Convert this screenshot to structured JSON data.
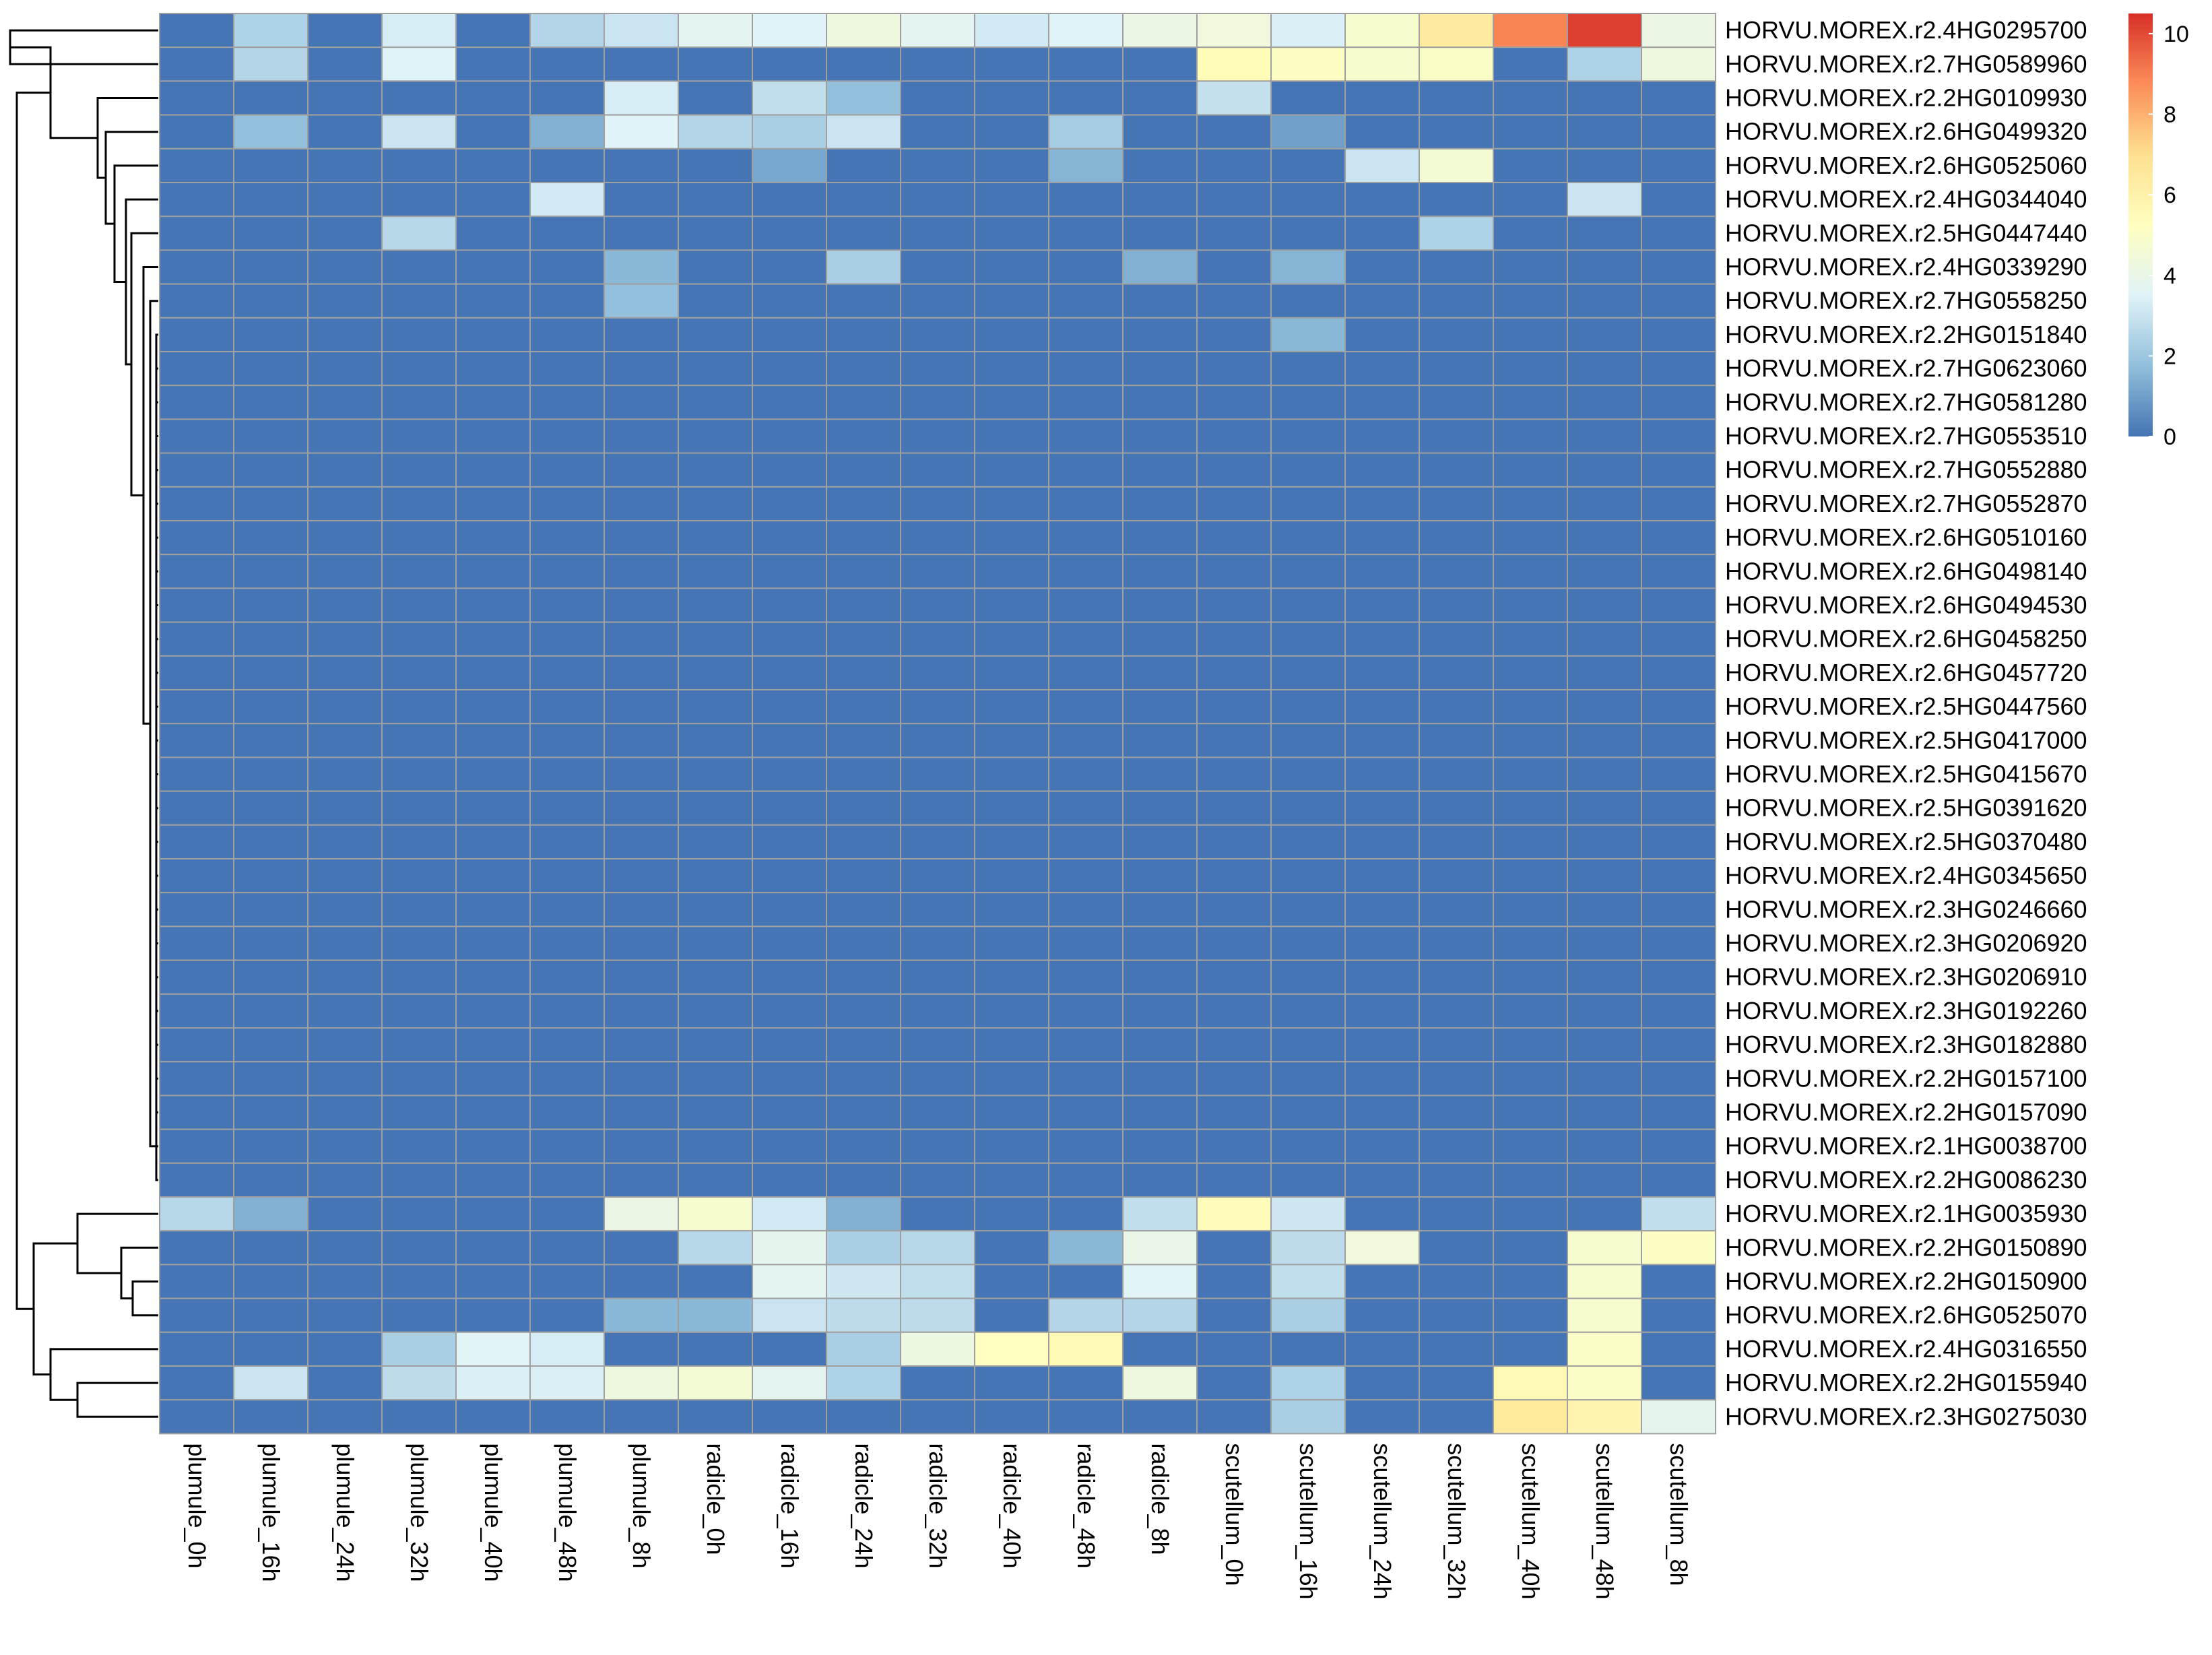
{
  "chart_data": {
    "type": "heatmap",
    "title": "",
    "xlabel": "",
    "ylabel": "",
    "columns": [
      "plumule_0h",
      "plumule_16h",
      "plumule_24h",
      "plumule_32h",
      "plumule_40h",
      "plumule_48h",
      "plumule_8h",
      "radicle_0h",
      "radicle_16h",
      "radicle_24h",
      "radicle_32h",
      "radicle_40h",
      "radicle_48h",
      "radicle_8h",
      "scutellum_0h",
      "scutellum_16h",
      "scutellum_24h",
      "scutellum_32h",
      "scutellum_40h",
      "scutellum_48h",
      "scutellum_8h"
    ],
    "rows": [
      {
        "name": "HORVU.MOREX.r2.4HG0295700",
        "values": [
          0,
          2.4,
          0,
          3.3,
          0,
          2.5,
          3.0,
          3.7,
          3.5,
          4.3,
          3.7,
          3.2,
          3.5,
          4.1,
          4.4,
          3.4,
          4.8,
          6.4,
          8.9,
          10.2,
          4.1
        ]
      },
      {
        "name": "HORVU.MOREX.r2.7HG0589960",
        "values": [
          0,
          2.5,
          0,
          3.5,
          0,
          0,
          0,
          0,
          0,
          0,
          0,
          0,
          0,
          0,
          5.5,
          5.1,
          4.8,
          5.0,
          0,
          2.4,
          4.3
        ]
      },
      {
        "name": "HORVU.MOREX.r2.2HG0109930",
        "values": [
          0,
          0,
          0,
          0,
          0,
          0,
          3.3,
          0,
          2.8,
          1.8,
          0,
          0,
          0,
          0,
          2.9,
          0,
          0,
          0,
          0,
          0,
          0
        ]
      },
      {
        "name": "HORVU.MOREX.r2.6HG0499320",
        "values": [
          0,
          1.8,
          0,
          3.0,
          0,
          1.4,
          3.5,
          2.5,
          2.3,
          3.0,
          0,
          0,
          2.2,
          0,
          0,
          1.0,
          0,
          0,
          0,
          0,
          0
        ]
      },
      {
        "name": "HORVU.MOREX.r2.6HG0525060",
        "values": [
          0,
          0,
          0,
          0,
          0,
          0,
          0,
          0,
          1.2,
          0,
          0,
          0,
          1.5,
          0,
          0,
          0,
          3.0,
          4.6,
          0,
          0,
          0
        ]
      },
      {
        "name": "HORVU.MOREX.r2.4HG0344040",
        "values": [
          0,
          0,
          0,
          0,
          0,
          3.2,
          0,
          0,
          0,
          0,
          0,
          0,
          0,
          0,
          0,
          0,
          0,
          0,
          0,
          3.0,
          0
        ]
      },
      {
        "name": "HORVU.MOREX.r2.5HG0447440",
        "values": [
          0,
          0,
          0,
          2.6,
          0,
          0,
          0,
          0,
          0,
          0,
          0,
          0,
          0,
          0,
          0,
          0,
          0,
          2.4,
          0,
          0,
          0
        ]
      },
      {
        "name": "HORVU.MOREX.r2.4HG0339290",
        "values": [
          0,
          0,
          0,
          0,
          0,
          0,
          1.6,
          0,
          0,
          2.3,
          0,
          0,
          0,
          1.4,
          0,
          1.5,
          0,
          0,
          0,
          0,
          0
        ]
      },
      {
        "name": "HORVU.MOREX.r2.7HG0558250",
        "values": [
          0,
          0,
          0,
          0,
          0,
          0,
          1.8,
          0,
          0,
          0,
          0,
          0,
          0,
          0,
          0,
          0,
          0,
          0,
          0,
          0,
          0
        ]
      },
      {
        "name": "HORVU.MOREX.r2.2HG0151840",
        "values": [
          0,
          0,
          0,
          0,
          0,
          0,
          0,
          0,
          0,
          0,
          0,
          0,
          0,
          0,
          0,
          1.6,
          0,
          0,
          0,
          0,
          0
        ]
      },
      {
        "name": "HORVU.MOREX.r2.7HG0623060",
        "values": [
          0,
          0,
          0,
          0,
          0,
          0,
          0,
          0,
          0,
          0,
          0,
          0,
          0,
          0,
          0,
          0,
          0,
          0,
          0,
          0,
          0
        ]
      },
      {
        "name": "HORVU.MOREX.r2.7HG0581280",
        "values": [
          0,
          0,
          0,
          0,
          0,
          0,
          0,
          0,
          0,
          0,
          0,
          0,
          0,
          0,
          0,
          0,
          0,
          0,
          0,
          0,
          0
        ]
      },
      {
        "name": "HORVU.MOREX.r2.7HG0553510",
        "values": [
          0,
          0,
          0,
          0,
          0,
          0,
          0,
          0,
          0,
          0,
          0,
          0,
          0,
          0,
          0,
          0,
          0,
          0,
          0,
          0,
          0
        ]
      },
      {
        "name": "HORVU.MOREX.r2.7HG0552880",
        "values": [
          0,
          0,
          0,
          0,
          0,
          0,
          0,
          0,
          0,
          0,
          0,
          0,
          0,
          0,
          0,
          0,
          0,
          0,
          0,
          0,
          0
        ]
      },
      {
        "name": "HORVU.MOREX.r2.7HG0552870",
        "values": [
          0,
          0,
          0,
          0,
          0,
          0,
          0,
          0,
          0,
          0,
          0,
          0,
          0,
          0,
          0,
          0,
          0,
          0,
          0,
          0,
          0
        ]
      },
      {
        "name": "HORVU.MOREX.r2.6HG0510160",
        "values": [
          0,
          0,
          0,
          0,
          0,
          0,
          0,
          0,
          0,
          0,
          0,
          0,
          0,
          0,
          0,
          0,
          0,
          0,
          0,
          0,
          0
        ]
      },
      {
        "name": "HORVU.MOREX.r2.6HG0498140",
        "values": [
          0,
          0,
          0,
          0,
          0,
          0,
          0,
          0,
          0,
          0,
          0,
          0,
          0,
          0,
          0,
          0,
          0,
          0,
          0,
          0,
          0
        ]
      },
      {
        "name": "HORVU.MOREX.r2.6HG0494530",
        "values": [
          0,
          0,
          0,
          0,
          0,
          0,
          0,
          0,
          0,
          0,
          0,
          0,
          0,
          0,
          0,
          0,
          0,
          0,
          0,
          0,
          0
        ]
      },
      {
        "name": "HORVU.MOREX.r2.6HG0458250",
        "values": [
          0,
          0,
          0,
          0,
          0,
          0,
          0,
          0,
          0,
          0,
          0,
          0,
          0,
          0,
          0,
          0,
          0,
          0,
          0,
          0,
          0
        ]
      },
      {
        "name": "HORVU.MOREX.r2.6HG0457720",
        "values": [
          0,
          0,
          0,
          0,
          0,
          0,
          0,
          0,
          0,
          0,
          0,
          0,
          0,
          0,
          0,
          0,
          0,
          0,
          0,
          0,
          0
        ]
      },
      {
        "name": "HORVU.MOREX.r2.5HG0447560",
        "values": [
          0,
          0,
          0,
          0,
          0,
          0,
          0,
          0,
          0,
          0,
          0,
          0,
          0,
          0,
          0,
          0,
          0,
          0,
          0,
          0,
          0
        ]
      },
      {
        "name": "HORVU.MOREX.r2.5HG0417000",
        "values": [
          0,
          0,
          0,
          0,
          0,
          0,
          0,
          0,
          0,
          0,
          0,
          0,
          0,
          0,
          0,
          0,
          0,
          0,
          0,
          0,
          0
        ]
      },
      {
        "name": "HORVU.MOREX.r2.5HG0415670",
        "values": [
          0,
          0,
          0,
          0,
          0,
          0,
          0,
          0,
          0,
          0,
          0,
          0,
          0,
          0,
          0,
          0,
          0,
          0,
          0,
          0,
          0
        ]
      },
      {
        "name": "HORVU.MOREX.r2.5HG0391620",
        "values": [
          0,
          0,
          0,
          0,
          0,
          0,
          0,
          0,
          0,
          0,
          0,
          0,
          0,
          0,
          0,
          0,
          0,
          0,
          0,
          0,
          0
        ]
      },
      {
        "name": "HORVU.MOREX.r2.5HG0370480",
        "values": [
          0,
          0,
          0,
          0,
          0,
          0,
          0,
          0,
          0,
          0,
          0,
          0,
          0,
          0,
          0,
          0,
          0,
          0,
          0,
          0,
          0
        ]
      },
      {
        "name": "HORVU.MOREX.r2.4HG0345650",
        "values": [
          0,
          0,
          0,
          0,
          0,
          0,
          0,
          0,
          0,
          0,
          0,
          0,
          0,
          0,
          0,
          0,
          0,
          0,
          0,
          0,
          0
        ]
      },
      {
        "name": "HORVU.MOREX.r2.3HG0246660",
        "values": [
          0,
          0,
          0,
          0,
          0,
          0,
          0,
          0,
          0,
          0,
          0,
          0,
          0,
          0,
          0,
          0,
          0,
          0,
          0,
          0,
          0
        ]
      },
      {
        "name": "HORVU.MOREX.r2.3HG0206920",
        "values": [
          0,
          0,
          0,
          0,
          0,
          0,
          0,
          0,
          0,
          0,
          0,
          0,
          0,
          0,
          0,
          0,
          0,
          0,
          0,
          0,
          0
        ]
      },
      {
        "name": "HORVU.MOREX.r2.3HG0206910",
        "values": [
          0,
          0,
          0,
          0,
          0,
          0,
          0,
          0,
          0,
          0,
          0,
          0,
          0,
          0,
          0,
          0,
          0,
          0,
          0,
          0,
          0
        ]
      },
      {
        "name": "HORVU.MOREX.r2.3HG0192260",
        "values": [
          0,
          0,
          0,
          0,
          0,
          0,
          0,
          0,
          0,
          0,
          0,
          0,
          0,
          0,
          0,
          0,
          0,
          0,
          0,
          0,
          0
        ]
      },
      {
        "name": "HORVU.MOREX.r2.3HG0182880",
        "values": [
          0,
          0,
          0,
          0,
          0,
          0,
          0,
          0,
          0,
          0,
          0,
          0,
          0,
          0,
          0,
          0,
          0,
          0,
          0,
          0,
          0
        ]
      },
      {
        "name": "HORVU.MOREX.r2.2HG0157100",
        "values": [
          0,
          0,
          0,
          0,
          0,
          0,
          0,
          0,
          0,
          0,
          0,
          0,
          0,
          0,
          0,
          0,
          0,
          0,
          0,
          0,
          0
        ]
      },
      {
        "name": "HORVU.MOREX.r2.2HG0157090",
        "values": [
          0,
          0,
          0,
          0,
          0,
          0,
          0,
          0,
          0,
          0,
          0,
          0,
          0,
          0,
          0,
          0,
          0,
          0,
          0,
          0,
          0
        ]
      },
      {
        "name": "HORVU.MOREX.r2.1HG0038700",
        "values": [
          0,
          0,
          0,
          0,
          0,
          0,
          0,
          0,
          0,
          0,
          0,
          0,
          0,
          0,
          0,
          0,
          0,
          0,
          0,
          0,
          0
        ]
      },
      {
        "name": "HORVU.MOREX.r2.2HG0086230",
        "values": [
          0,
          0,
          0,
          0,
          0,
          0,
          0,
          0,
          0,
          0,
          0,
          0,
          0,
          0,
          0,
          0,
          0,
          0,
          0,
          0,
          0
        ]
      },
      {
        "name": "HORVU.MOREX.r2.1HG0035930",
        "values": [
          2.6,
          1.4,
          0,
          0,
          0,
          0,
          4.1,
          4.8,
          3.2,
          1.4,
          0,
          0,
          0,
          2.8,
          5.4,
          3.1,
          0,
          0,
          0,
          0,
          2.8
        ]
      },
      {
        "name": "HORVU.MOREX.r2.2HG0150890",
        "values": [
          0,
          0,
          0,
          0,
          0,
          0,
          0,
          2.6,
          3.8,
          2.3,
          2.6,
          0,
          1.6,
          4.0,
          0,
          2.7,
          4.4,
          0,
          0,
          4.8,
          5.1
        ]
      },
      {
        "name": "HORVU.MOREX.r2.2HG0150900",
        "values": [
          0,
          0,
          0,
          0,
          0,
          0,
          0,
          0,
          3.7,
          3.1,
          2.8,
          0,
          0,
          3.6,
          0,
          2.8,
          0,
          0,
          0,
          4.8,
          0
        ]
      },
      {
        "name": "HORVU.MOREX.r2.6HG0525070",
        "values": [
          0,
          0,
          0,
          0,
          0,
          0,
          1.6,
          1.6,
          3.0,
          2.7,
          2.7,
          0,
          2.5,
          2.5,
          0,
          2.3,
          0,
          0,
          0,
          4.8,
          0
        ]
      },
      {
        "name": "HORVU.MOREX.r2.4HG0316550",
        "values": [
          0,
          0,
          0,
          2.3,
          3.6,
          3.3,
          0,
          0,
          0,
          2.3,
          4.2,
          5.2,
          5.6,
          0,
          0,
          0,
          0,
          0,
          0,
          5.0,
          0
        ]
      },
      {
        "name": "HORVU.MOREX.r2.2HG0155940",
        "values": [
          0,
          3.0,
          0,
          2.7,
          3.4,
          3.4,
          4.3,
          4.6,
          3.7,
          2.4,
          0,
          0,
          0,
          4.3,
          0,
          2.4,
          0,
          0,
          5.6,
          5.0,
          0
        ]
      },
      {
        "name": "HORVU.MOREX.r2.3HG0275030",
        "values": [
          0,
          0,
          0,
          0,
          0,
          0,
          0,
          0,
          0,
          0,
          0,
          0,
          0,
          0,
          0,
          2.3,
          0,
          0,
          6.5,
          5.8,
          3.8
        ]
      }
    ],
    "color_scale": {
      "min": 0,
      "max": 10.5,
      "colors": [
        "#4575B4",
        "#91BFDB",
        "#E0F3F8",
        "#FFFFBF",
        "#FEE090",
        "#FC8D59",
        "#D73027"
      ],
      "ticks": [
        "0",
        "2",
        "4",
        "6",
        "8",
        "10"
      ],
      "tick_values": [
        0,
        2,
        4,
        6,
        8,
        10
      ]
    },
    "cell_border_color": "#A0A0A0",
    "grid": true,
    "legend_position": "top-right",
    "row_dendrogram": true
  }
}
